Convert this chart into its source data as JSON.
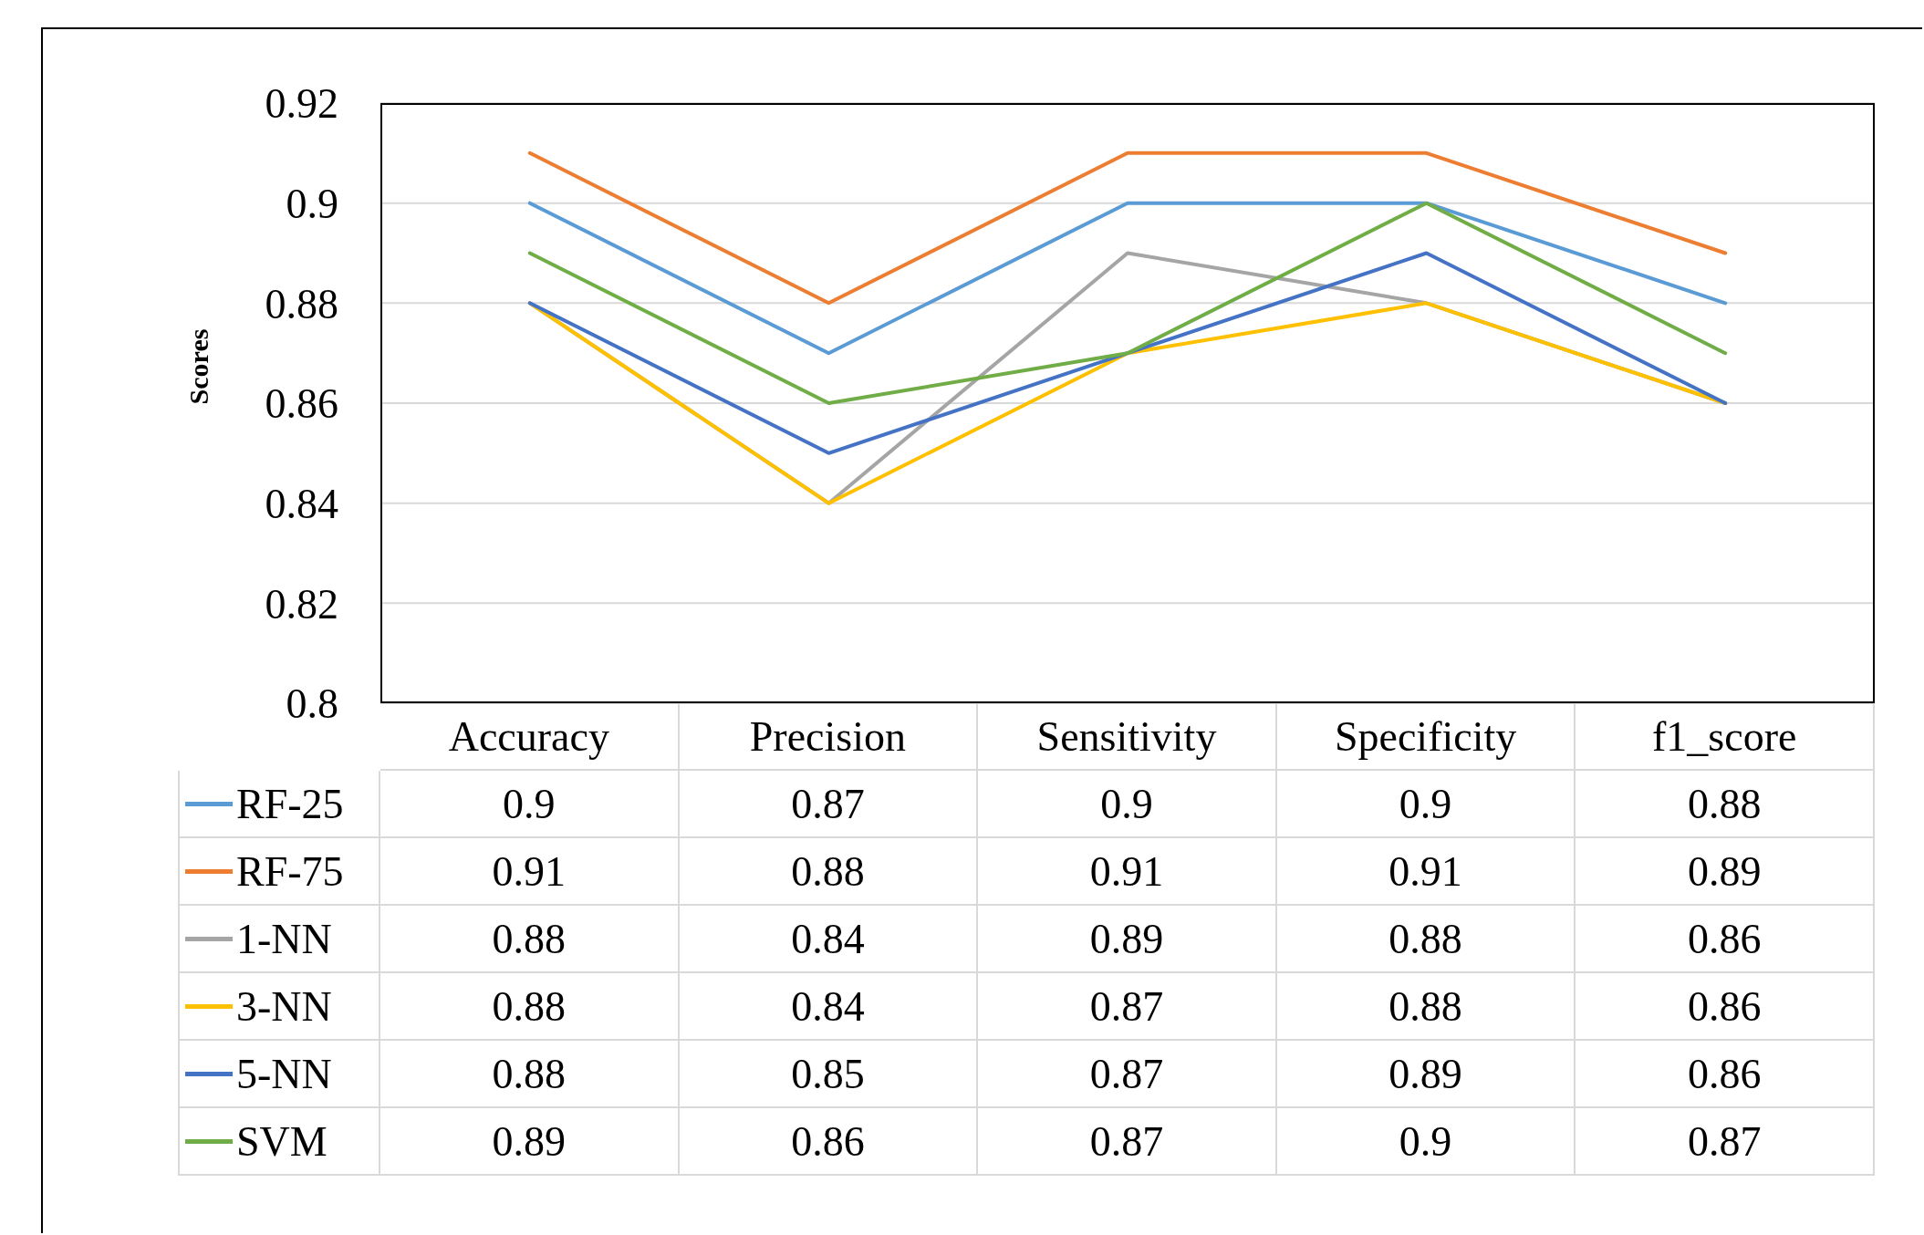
{
  "chart_data": {
    "type": "line",
    "ylabel": "Scores",
    "categories": [
      "Accuracy",
      "Precision",
      "Sensitivity",
      "Specificity",
      "f1_score"
    ],
    "series": [
      {
        "name": "RF-25",
        "color": "#5b9bd5",
        "values": [
          0.9,
          0.87,
          0.9,
          0.9,
          0.88
        ]
      },
      {
        "name": "RF-75",
        "color": "#ed7d31",
        "values": [
          0.91,
          0.88,
          0.91,
          0.91,
          0.89
        ]
      },
      {
        "name": "1-NN",
        "color": "#a5a5a5",
        "values": [
          0.88,
          0.84,
          0.89,
          0.88,
          0.86
        ]
      },
      {
        "name": "3-NN",
        "color": "#ffc000",
        "values": [
          0.88,
          0.84,
          0.87,
          0.88,
          0.86
        ]
      },
      {
        "name": "5-NN",
        "color": "#4472c4",
        "values": [
          0.88,
          0.85,
          0.87,
          0.89,
          0.86
        ]
      },
      {
        "name": "SVM",
        "color": "#70ad47",
        "values": [
          0.89,
          0.86,
          0.87,
          0.9,
          0.87
        ]
      }
    ],
    "ylim": [
      0.8,
      0.92
    ],
    "yticks": [
      0.8,
      0.82,
      0.84,
      0.86,
      0.88,
      0.9,
      0.92
    ],
    "grid": "y",
    "legend": "bottom",
    "data_labels": true,
    "marker": "none",
    "line_style": "solid"
  }
}
